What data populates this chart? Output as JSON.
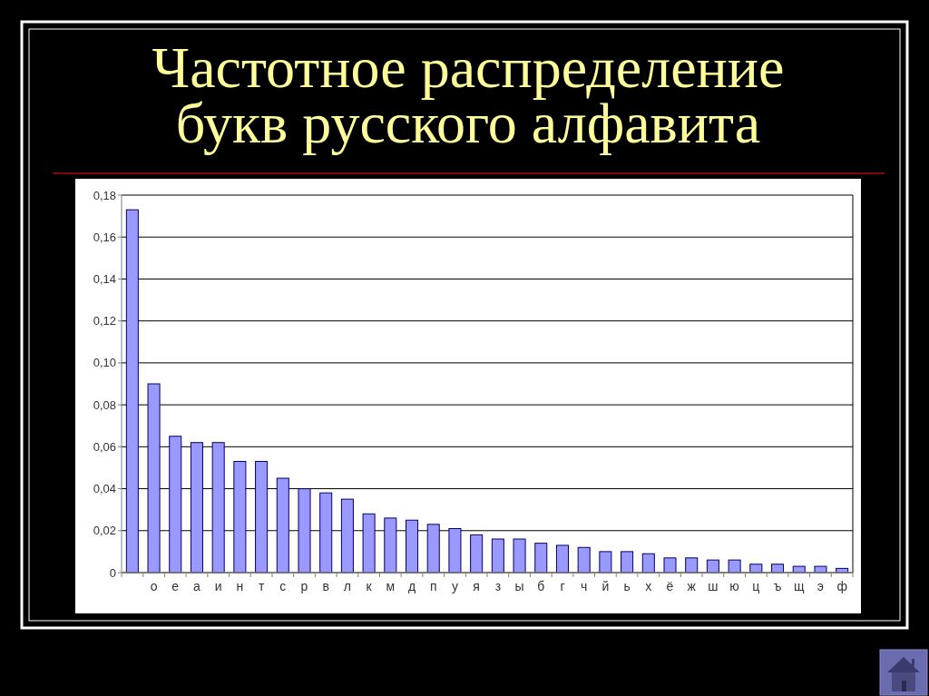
{
  "chart_data": {
    "type": "bar",
    "title": "Частотное распределение букв русского алфавита",
    "categories": [
      null,
      "о",
      "е",
      "а",
      "и",
      "н",
      "т",
      "с",
      "р",
      "в",
      "л",
      "к",
      "м",
      "д",
      "п",
      "у",
      "я",
      "з",
      "ы",
      "б",
      "г",
      "ч",
      "й",
      "ь",
      "х",
      "ё",
      "ж",
      "ш",
      "ю",
      "ц",
      "ъ",
      "щ",
      "э",
      "ф"
    ],
    "values": [
      0.173,
      0.09,
      0.065,
      0.062,
      0.062,
      0.053,
      0.053,
      0.045,
      0.04,
      0.038,
      0.035,
      0.028,
      0.026,
      0.025,
      0.023,
      0.021,
      0.018,
      0.016,
      0.016,
      0.014,
      0.013,
      0.012,
      0.01,
      0.01,
      0.009,
      0.007,
      0.007,
      0.006,
      0.006,
      0.004,
      0.004,
      0.003,
      0.003,
      0.002
    ],
    "color": "#9999ff",
    "ylim": [
      0,
      0.18
    ],
    "yticks": [
      0,
      {
        "value": 0.02,
        "label": "0,02"
      },
      {
        "value": 0.04,
        "label": "0,04"
      },
      {
        "value": 0.06,
        "label": "0,06"
      },
      {
        "value": 0.08,
        "label": "0,08"
      },
      {
        "value": 0.1,
        "label": "0,10"
      },
      {
        "value": 0.12,
        "label": "0,12"
      },
      {
        "value": 0.14,
        "label": "0,14"
      },
      {
        "value": 0.16,
        "label": "0,16"
      },
      {
        "value": 0.18,
        "label": "0,18"
      }
    ],
    "grid": "y"
  }
}
